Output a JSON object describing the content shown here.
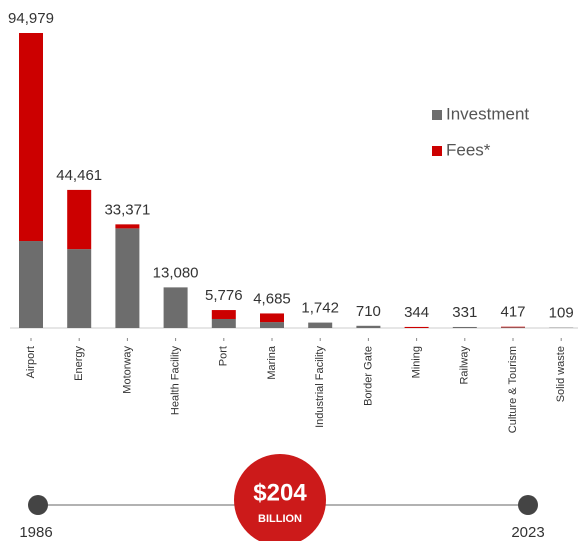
{
  "chart_data": {
    "type": "stacked_bar",
    "categories": [
      "Airport",
      "Energy",
      "Motorway",
      "Health Facility",
      "Port",
      "Marina",
      "Industrial Facility",
      "Border Gate",
      "Mining",
      "Railway",
      "Culture & Tourism",
      "Solid waste"
    ],
    "series": [
      {
        "name": "Investment",
        "color": "#6d6d6d",
        "values": [
          28000,
          25400,
          32071,
          13080,
          2900,
          1900,
          1742,
          710,
          0,
          331,
          200,
          109
        ]
      },
      {
        "name": "Fees*",
        "color": "#cc0000",
        "values": [
          66979,
          19061,
          1300,
          0,
          2876,
          2785,
          0,
          0,
          344,
          0,
          217,
          0
        ]
      }
    ],
    "totals": [
      94979,
      44461,
      33371,
      13080,
      5776,
      4685,
      1742,
      710,
      344,
      331,
      417,
      109
    ],
    "total_labels": [
      "94,979",
      "44,461",
      "33,371",
      "13,080",
      "5,776",
      "4,685",
      "1,742",
      "710",
      "344",
      "331",
      "417",
      "109"
    ],
    "timeline": {
      "start": "1986",
      "end": "2023",
      "amount": "$204",
      "unit": "BILLION"
    }
  }
}
